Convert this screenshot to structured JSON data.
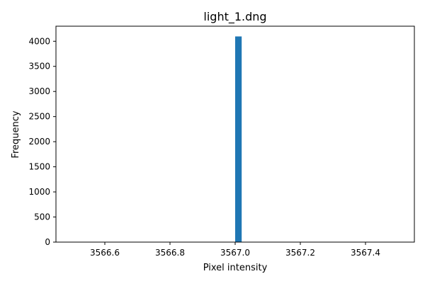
{
  "chart_data": {
    "type": "bar",
    "title": "light_1.dng",
    "xlabel": "Pixel intensity",
    "ylabel": "Frequency",
    "xlim": [
      3566.45,
      3567.55
    ],
    "ylim": [
      0,
      4300
    ],
    "x_ticks": [
      "3566.6",
      "3566.8",
      "3567.0",
      "3567.2",
      "3567.4"
    ],
    "x_tick_values": [
      3566.6,
      3566.8,
      3567.0,
      3567.2,
      3567.4
    ],
    "y_ticks": [
      "0",
      "500",
      "1000",
      "1500",
      "2000",
      "2500",
      "3000",
      "3500",
      "4000"
    ],
    "y_tick_values": [
      0,
      500,
      1000,
      1500,
      2000,
      2500,
      3000,
      3500,
      4000
    ],
    "bins": [
      {
        "x_start": 3567.0,
        "x_end": 3567.02,
        "value": 4096
      }
    ],
    "grid": false,
    "bar_color": "#1f77b4"
  }
}
